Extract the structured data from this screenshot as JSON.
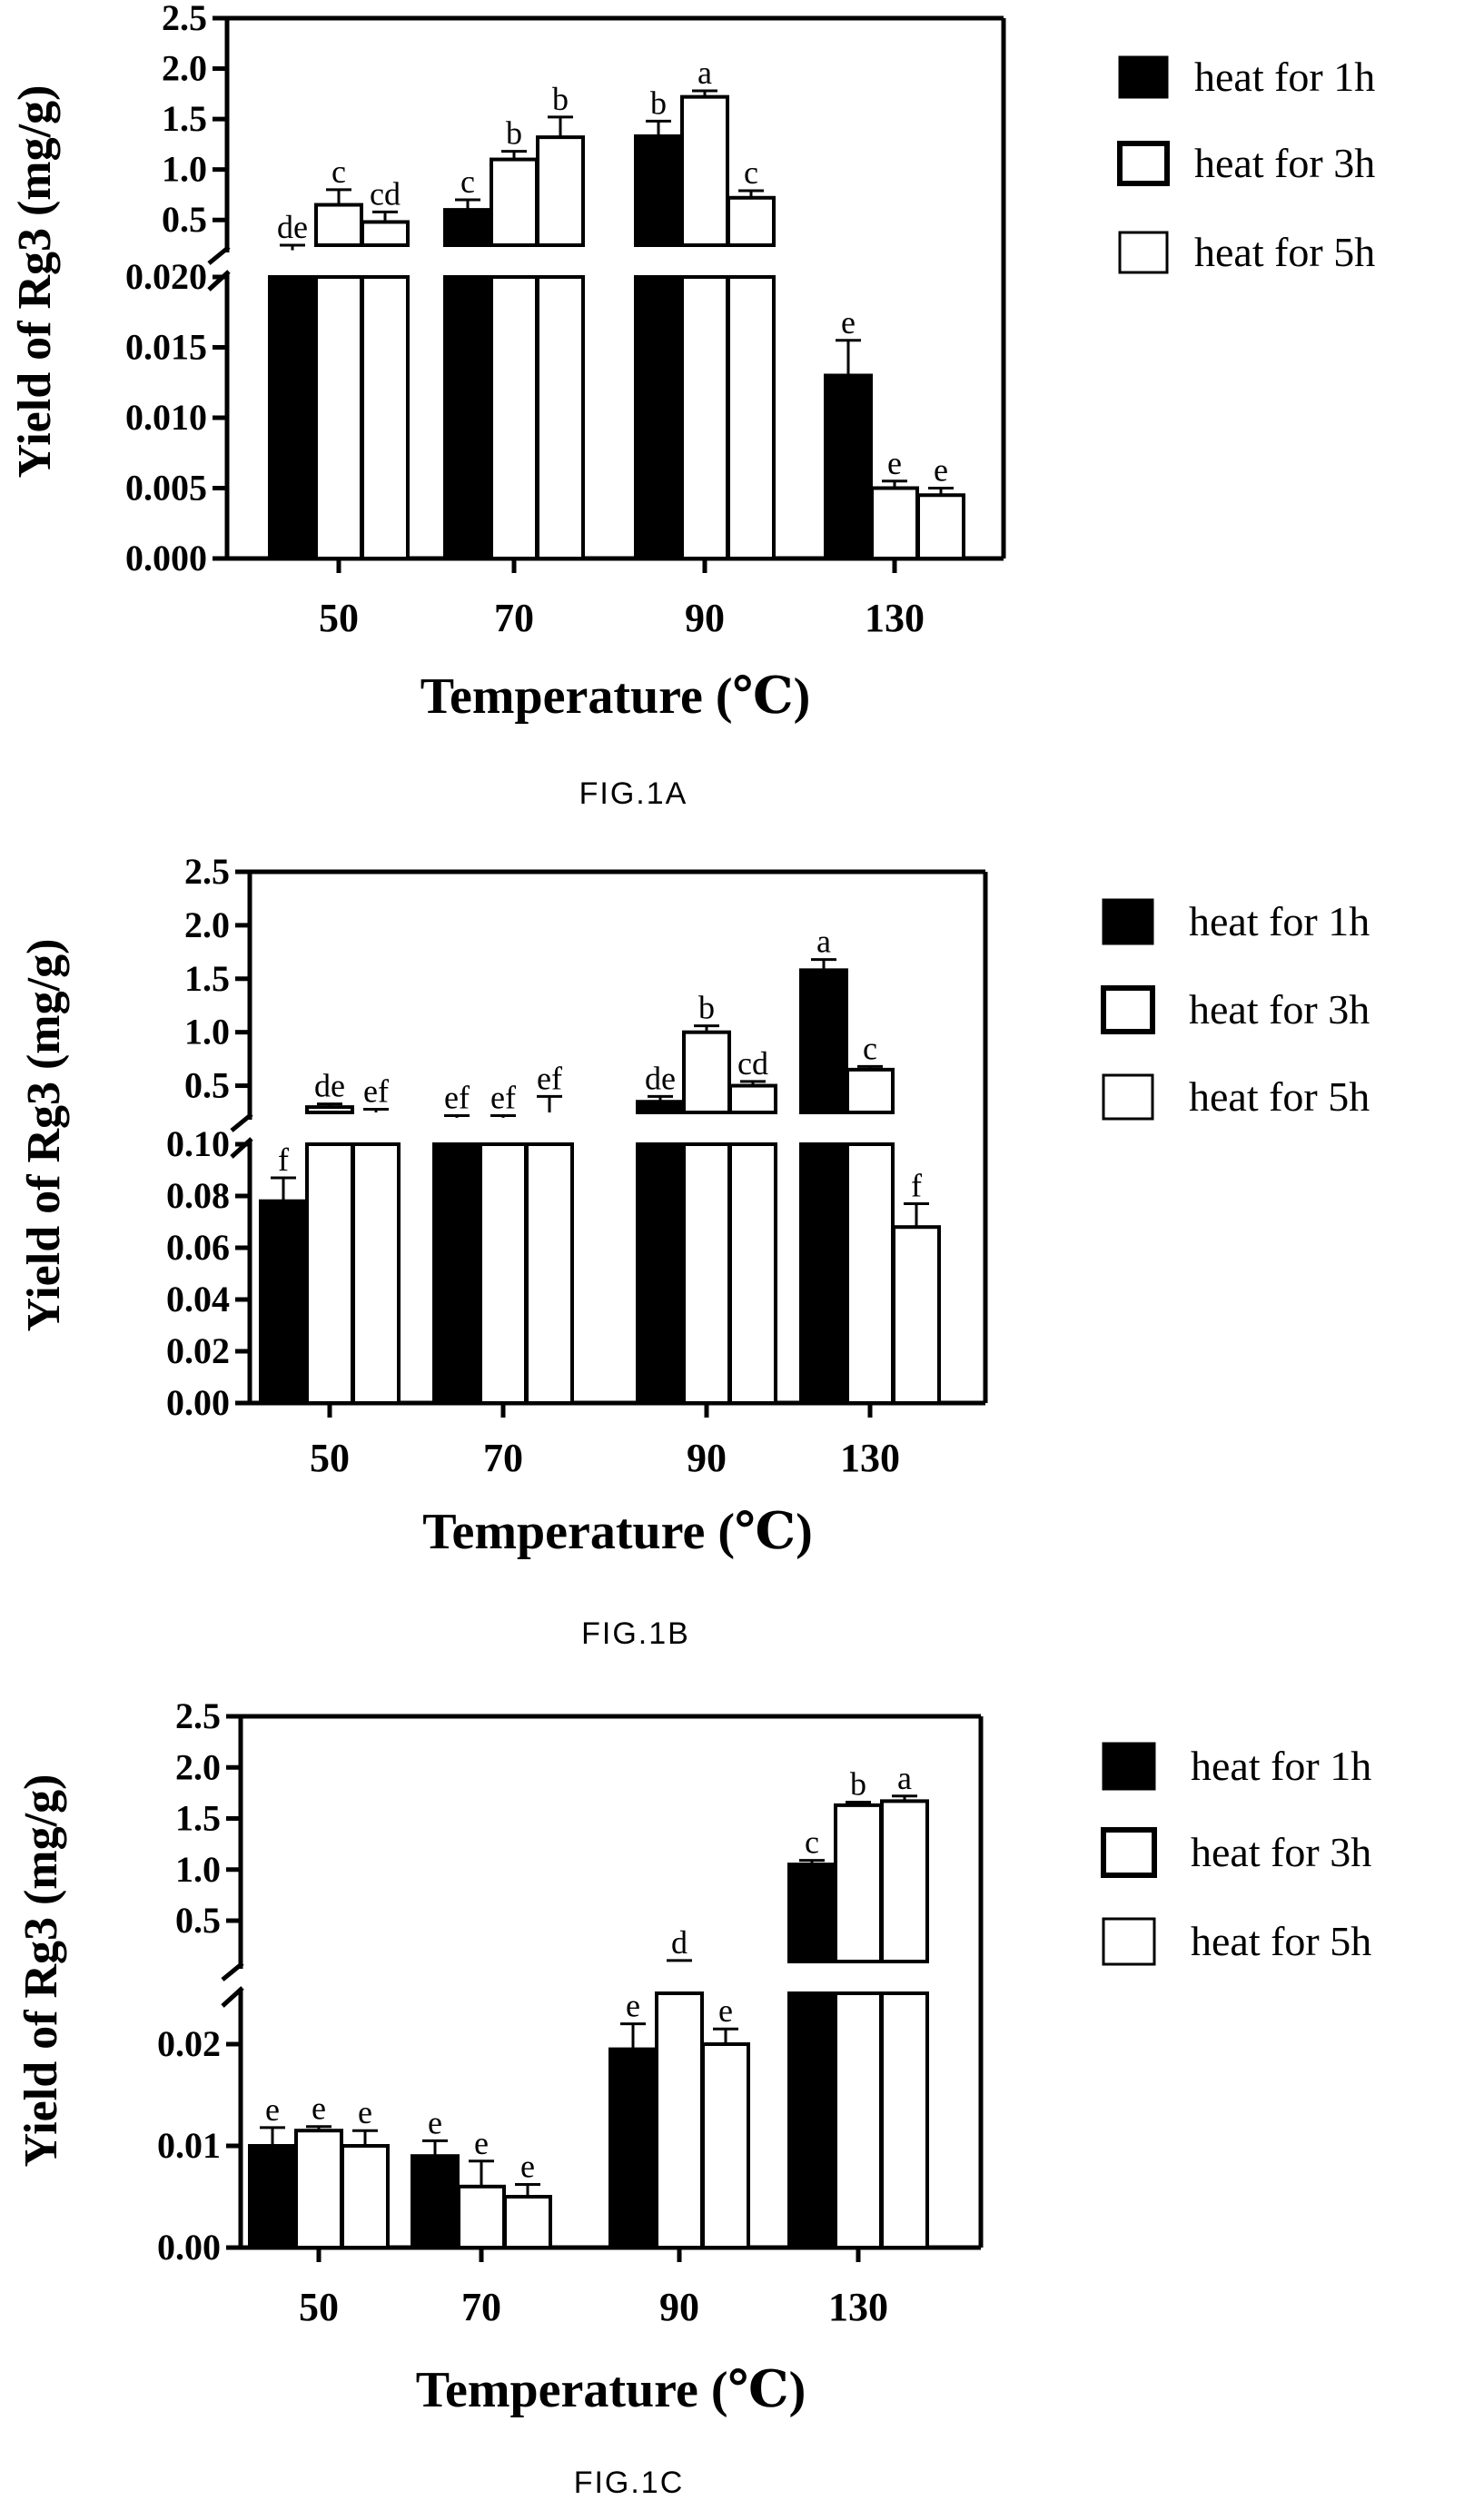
{
  "chart_data": [
    {
      "type": "bar",
      "caption": "FIG.1A",
      "categories": [
        "50",
        "70",
        "90",
        "130"
      ],
      "xlabel": "Temperature (℃)",
      "ylabel": "Yield of Rg3 (mg/g)",
      "axis_break": true,
      "lower_ylim": [
        0,
        0.02
      ],
      "lower_ticks": [
        "0.000",
        "0.005",
        "0.010",
        "0.015",
        "0.020"
      ],
      "upper_ylim": [
        0.25,
        2.5
      ],
      "upper_ticks": [
        "0.5",
        "1.0",
        "1.5",
        "2.0",
        "2.5"
      ],
      "legend_position": "right",
      "series": [
        {
          "name": "heat for 1h",
          "fill": "#000000",
          "values": [
            0.2,
            0.6,
            1.33,
            0.013
          ],
          "errors": [
            0.05,
            0.1,
            0.15,
            0.0025
          ],
          "labels": [
            "de",
            "c",
            "b",
            "e"
          ]
        },
        {
          "name": "heat for 3h",
          "fill": "#ffffff",
          "values": [
            0.65,
            1.1,
            1.72,
            0.005
          ],
          "errors": [
            0.15,
            0.08,
            0.06,
            0.0005
          ],
          "labels": [
            "c",
            "b",
            "a",
            "e"
          ]
        },
        {
          "name": "heat for 5h",
          "fill": "#ffffff",
          "values": [
            0.48,
            1.32,
            0.72,
            0.0045
          ],
          "errors": [
            0.1,
            0.2,
            0.07,
            0.0005
          ],
          "labels": [
            "cd",
            "b",
            "c",
            "e"
          ]
        }
      ]
    },
    {
      "type": "bar",
      "caption": "FIG.1B",
      "categories": [
        "50",
        "70",
        "90",
        "130"
      ],
      "xlabel": "Temperature (℃)",
      "ylabel": "Yield of Rg3 (mg/g)",
      "axis_break": true,
      "lower_ylim": [
        0,
        0.1
      ],
      "lower_ticks": [
        "0.00",
        "0.02",
        "0.04",
        "0.06",
        "0.08",
        "0.10"
      ],
      "upper_ylim": [
        0.25,
        2.5
      ],
      "upper_ticks": [
        "0.5",
        "1.0",
        "1.5",
        "2.0",
        "2.5"
      ],
      "legend_position": "right",
      "series": [
        {
          "name": "heat for 1h",
          "fill": "#000000",
          "values": [
            0.078,
            0.2,
            0.35,
            1.58
          ],
          "errors": [
            0.009,
            0.02,
            0.05,
            0.1
          ],
          "labels": [
            "f",
            "ef",
            "de",
            "a"
          ]
        },
        {
          "name": "heat for 3h",
          "fill": "#ffffff",
          "values": [
            0.3,
            0.2,
            1.0,
            0.65
          ],
          "errors": [
            0.03,
            0.02,
            0.06,
            0.03
          ],
          "labels": [
            "de",
            "ef",
            "b",
            "c"
          ]
        },
        {
          "name": "heat for 5h",
          "fill": "#ffffff",
          "values": [
            0.25,
            0.25,
            0.5,
            0.068
          ],
          "errors": [
            0.03,
            0.15,
            0.04,
            0.009
          ],
          "labels": [
            "ef",
            "ef",
            "cd",
            "f"
          ]
        }
      ]
    },
    {
      "type": "bar",
      "caption": "FIG.1C",
      "categories": [
        "50",
        "70",
        "90",
        "130"
      ],
      "xlabel": "Temperature (℃)",
      "ylabel": "Yield of Rg3 (mg/g)",
      "axis_break": true,
      "lower_ylim": [
        0,
        0.025
      ],
      "lower_ticks": [
        "0.00",
        "0.01",
        "0.02"
      ],
      "lower_tick_values": [
        0,
        0.01,
        0.02
      ],
      "upper_ylim": [
        0.1,
        2.5
      ],
      "upper_ticks": [
        "0.5",
        "1.0",
        "1.5",
        "2.0",
        "2.5"
      ],
      "legend_position": "right",
      "series": [
        {
          "name": "heat for 1h",
          "fill": "#000000",
          "values": [
            0.01,
            0.009,
            0.0195,
            1.05
          ],
          "errors": [
            0.0018,
            0.0015,
            0.0025,
            0.04
          ],
          "labels": [
            "e",
            "e",
            "e",
            "c"
          ]
        },
        {
          "name": "heat for 3h",
          "fill": "#ffffff",
          "values": [
            0.0115,
            0.006,
            0.1,
            1.63
          ],
          "errors": [
            0.0004,
            0.0025,
            0.01,
            0.03
          ],
          "labels": [
            "e",
            "e",
            "d",
            "b"
          ]
        },
        {
          "name": "heat for 5h",
          "fill": "#ffffff",
          "values": [
            0.01,
            0.005,
            0.02,
            1.67
          ],
          "errors": [
            0.0015,
            0.0012,
            0.0015,
            0.05
          ],
          "labels": [
            "e",
            "e",
            "e",
            "a"
          ]
        }
      ]
    }
  ]
}
